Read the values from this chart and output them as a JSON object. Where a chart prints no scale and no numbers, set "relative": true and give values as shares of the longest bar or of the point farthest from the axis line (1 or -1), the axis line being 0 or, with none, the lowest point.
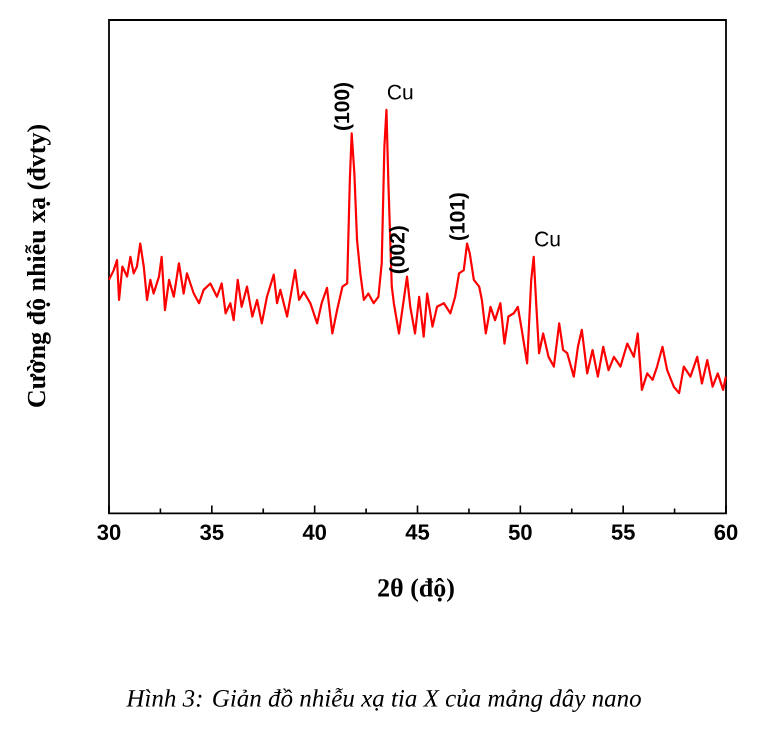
{
  "chart_data": {
    "type": "line",
    "relative": true,
    "xlabel": "2θ (độ)",
    "ylabel": "Cường độ nhiễu xạ (đvty)",
    "xlim": [
      30,
      60
    ],
    "xticks": [
      30,
      35,
      40,
      45,
      50,
      55,
      60
    ],
    "series": [
      {
        "color": "#ff0000",
        "x": [
          30.0,
          30.23,
          30.39,
          30.49,
          30.65,
          30.88,
          31.04,
          31.2,
          31.36,
          31.52,
          31.69,
          31.85,
          32.01,
          32.17,
          32.43,
          32.56,
          32.72,
          32.92,
          33.15,
          33.4,
          33.63,
          33.79,
          34.12,
          34.38,
          34.6,
          34.93,
          35.25,
          35.48,
          35.67,
          35.9,
          36.06,
          36.26,
          36.45,
          36.71,
          36.97,
          37.2,
          37.43,
          37.68,
          38.01,
          38.17,
          38.33,
          38.66,
          39.05,
          39.24,
          39.47,
          39.79,
          40.12,
          40.34,
          40.6,
          40.86,
          41.09,
          41.35,
          41.58,
          41.71,
          41.8,
          41.93,
          42.06,
          42.22,
          42.39,
          42.61,
          42.87,
          43.1,
          43.26,
          43.39,
          43.49,
          43.59,
          43.75,
          43.85,
          44.1,
          44.33,
          44.49,
          44.65,
          44.88,
          45.08,
          45.3,
          45.47,
          45.73,
          45.95,
          46.28,
          46.6,
          46.83,
          47.02,
          47.25,
          47.41,
          47.54,
          47.74,
          48.0,
          48.13,
          48.32,
          48.55,
          48.77,
          49.03,
          49.23,
          49.42,
          49.68,
          49.88,
          50.07,
          50.33,
          50.53,
          50.65,
          50.78,
          50.91,
          51.11,
          51.37,
          51.63,
          51.89,
          52.08,
          52.28,
          52.6,
          52.8,
          52.99,
          53.25,
          53.51,
          53.77,
          54.03,
          54.29,
          54.55,
          54.87,
          55.2,
          55.52,
          55.71,
          55.91,
          56.17,
          56.43,
          56.65,
          56.91,
          57.14,
          57.46,
          57.72,
          57.95,
          58.27,
          58.6,
          58.83,
          59.09,
          59.35,
          59.6,
          59.86,
          59.99
        ],
        "values": [
          0.579,
          0.603,
          0.628,
          0.529,
          0.612,
          0.587,
          0.636,
          0.595,
          0.612,
          0.669,
          0.612,
          0.529,
          0.579,
          0.545,
          0.587,
          0.636,
          0.504,
          0.579,
          0.537,
          0.62,
          0.545,
          0.595,
          0.545,
          0.521,
          0.554,
          0.57,
          0.537,
          0.57,
          0.496,
          0.521,
          0.479,
          0.579,
          0.512,
          0.562,
          0.488,
          0.529,
          0.471,
          0.537,
          0.592,
          0.521,
          0.554,
          0.488,
          0.603,
          0.529,
          0.549,
          0.521,
          0.471,
          0.521,
          0.559,
          0.446,
          0.504,
          0.562,
          0.57,
          0.826,
          0.942,
          0.843,
          0.678,
          0.595,
          0.529,
          0.545,
          0.521,
          0.537,
          0.62,
          0.909,
          1.0,
          0.81,
          0.562,
          0.521,
          0.446,
          0.529,
          0.587,
          0.512,
          0.446,
          0.537,
          0.438,
          0.545,
          0.463,
          0.512,
          0.521,
          0.496,
          0.537,
          0.595,
          0.603,
          0.669,
          0.645,
          0.579,
          0.562,
          0.529,
          0.446,
          0.512,
          0.479,
          0.521,
          0.421,
          0.488,
          0.496,
          0.512,
          0.455,
          0.372,
          0.579,
          0.636,
          0.512,
          0.397,
          0.446,
          0.388,
          0.364,
          0.471,
          0.405,
          0.397,
          0.339,
          0.413,
          0.455,
          0.347,
          0.405,
          0.339,
          0.413,
          0.355,
          0.388,
          0.364,
          0.421,
          0.388,
          0.446,
          0.306,
          0.347,
          0.331,
          0.364,
          0.413,
          0.355,
          0.314,
          0.298,
          0.364,
          0.339,
          0.388,
          0.322,
          0.38,
          0.314,
          0.347,
          0.306,
          0.339
        ]
      }
    ],
    "annotations": [
      {
        "text": "(100)",
        "x": 41.8,
        "y": 0.942
      },
      {
        "text": "Cu",
        "x": 43.49,
        "y": 1.0
      },
      {
        "text": "(002)",
        "x": 44.49,
        "y": 0.587
      },
      {
        "text": "(101)",
        "x": 47.41,
        "y": 0.669
      },
      {
        "text": "Cu",
        "x": 50.65,
        "y": 0.636
      },
      "Hình 3: Giản đồ nhiễu xạ tia X của mảng dây nano"
    ]
  }
}
